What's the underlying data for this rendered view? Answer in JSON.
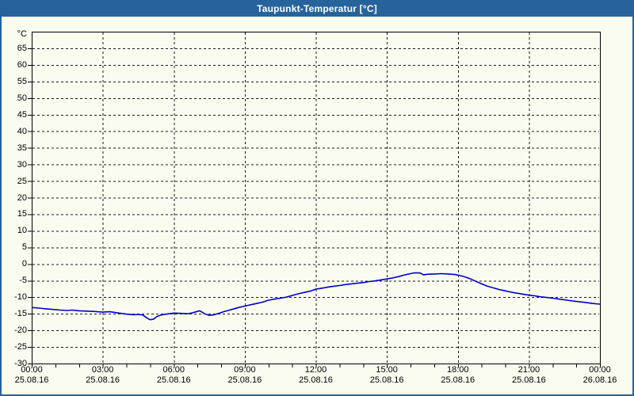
{
  "window": {
    "title": "Taupunkt-Temperatur [°C]"
  },
  "colors": {
    "titlebar_bg": "#26639b",
    "window_border": "#26639b",
    "background": "#fbfcf0",
    "curve": "#0000c8",
    "grid": "#1a1a1a",
    "frame": "#000000",
    "label_text": "#000000",
    "title_text": "#ffffff"
  },
  "chart_data": {
    "type": "line",
    "title": "Taupunkt-Temperatur [°C]",
    "y_unit_label": "°C",
    "xlabel": "",
    "ylabel": "°C",
    "ylim": [
      -30,
      70
    ],
    "y_tick_step": 5,
    "y_ticks": [
      65,
      60,
      55,
      50,
      45,
      40,
      35,
      30,
      25,
      20,
      15,
      10,
      5,
      0,
      -5,
      -10,
      -15,
      -20,
      -25,
      -30
    ],
    "xlim_hours": [
      0,
      24
    ],
    "x_minor_tick_every_hours": 1,
    "x_ticks": [
      {
        "hour": 0,
        "time": "00:00",
        "date": "25.08.16"
      },
      {
        "hour": 3,
        "time": "03:00",
        "date": "25.08.16"
      },
      {
        "hour": 6,
        "time": "06:00",
        "date": "25.08.16"
      },
      {
        "hour": 9,
        "time": "09:00",
        "date": "25.08.16"
      },
      {
        "hour": 12,
        "time": "12:00",
        "date": "25.08.16"
      },
      {
        "hour": 15,
        "time": "15:00",
        "date": "25.08.16"
      },
      {
        "hour": 18,
        "time": "18:00",
        "date": "25.08.16"
      },
      {
        "hour": 21,
        "time": "21:00",
        "date": "25.08.16"
      },
      {
        "hour": 24,
        "time": "00:00",
        "date": "26.08.16"
      }
    ],
    "grid": "dashed",
    "legend": "none",
    "series": [
      {
        "name": "Taupunkt-Temperatur",
        "color": "#0000c8",
        "points": [
          [
            0.0,
            -13.1
          ],
          [
            0.3,
            -13.3
          ],
          [
            0.6,
            -13.5
          ],
          [
            0.9,
            -13.7
          ],
          [
            1.2,
            -13.9
          ],
          [
            1.5,
            -14.0
          ],
          [
            1.7,
            -13.9
          ],
          [
            2.0,
            -14.1
          ],
          [
            2.3,
            -14.2
          ],
          [
            2.6,
            -14.3
          ],
          [
            3.0,
            -14.5
          ],
          [
            3.3,
            -14.4
          ],
          [
            3.6,
            -14.7
          ],
          [
            4.0,
            -15.1
          ],
          [
            4.3,
            -15.3
          ],
          [
            4.5,
            -15.2
          ],
          [
            4.7,
            -15.4
          ],
          [
            4.85,
            -16.2
          ],
          [
            5.0,
            -16.8
          ],
          [
            5.15,
            -16.6
          ],
          [
            5.3,
            -15.8
          ],
          [
            5.5,
            -15.3
          ],
          [
            5.7,
            -15.1
          ],
          [
            6.0,
            -14.8
          ],
          [
            6.3,
            -14.9
          ],
          [
            6.6,
            -15.0
          ],
          [
            6.8,
            -14.7
          ],
          [
            7.0,
            -14.3
          ],
          [
            7.1,
            -14.1
          ],
          [
            7.3,
            -15.0
          ],
          [
            7.5,
            -15.5
          ],
          [
            7.7,
            -15.3
          ],
          [
            7.9,
            -14.9
          ],
          [
            8.1,
            -14.4
          ],
          [
            8.3,
            -14.0
          ],
          [
            8.5,
            -13.6
          ],
          [
            8.75,
            -13.1
          ],
          [
            9.0,
            -12.7
          ],
          [
            9.25,
            -12.3
          ],
          [
            9.5,
            -11.9
          ],
          [
            9.75,
            -11.5
          ],
          [
            10.0,
            -10.9
          ],
          [
            10.25,
            -10.6
          ],
          [
            10.5,
            -10.3
          ],
          [
            10.75,
            -10.0
          ],
          [
            11.0,
            -9.5
          ],
          [
            11.25,
            -9.0
          ],
          [
            11.5,
            -8.6
          ],
          [
            11.75,
            -8.2
          ],
          [
            12.0,
            -7.6
          ],
          [
            12.25,
            -7.3
          ],
          [
            12.5,
            -7.0
          ],
          [
            12.75,
            -6.7
          ],
          [
            13.0,
            -6.5
          ],
          [
            13.25,
            -6.2
          ],
          [
            13.5,
            -6.0
          ],
          [
            13.75,
            -5.8
          ],
          [
            14.0,
            -5.6
          ],
          [
            14.25,
            -5.3
          ],
          [
            14.5,
            -5.1
          ],
          [
            14.75,
            -4.8
          ],
          [
            15.0,
            -4.5
          ],
          [
            15.25,
            -4.2
          ],
          [
            15.5,
            -3.8
          ],
          [
            15.75,
            -3.3
          ],
          [
            16.0,
            -2.9
          ],
          [
            16.15,
            -2.7
          ],
          [
            16.4,
            -2.7
          ],
          [
            16.55,
            -3.3
          ],
          [
            16.7,
            -3.1
          ],
          [
            17.0,
            -3.0
          ],
          [
            17.3,
            -2.9
          ],
          [
            17.6,
            -3.0
          ],
          [
            17.9,
            -3.2
          ],
          [
            18.1,
            -3.5
          ],
          [
            18.3,
            -3.9
          ],
          [
            18.5,
            -4.4
          ],
          [
            18.75,
            -5.2
          ],
          [
            19.0,
            -6.0
          ],
          [
            19.25,
            -6.7
          ],
          [
            19.5,
            -7.2
          ],
          [
            19.75,
            -7.7
          ],
          [
            20.0,
            -8.1
          ],
          [
            20.25,
            -8.5
          ],
          [
            20.5,
            -8.8
          ],
          [
            20.75,
            -9.1
          ],
          [
            21.0,
            -9.4
          ],
          [
            21.25,
            -9.6
          ],
          [
            21.5,
            -9.9
          ],
          [
            21.75,
            -10.1
          ],
          [
            22.0,
            -10.3
          ],
          [
            22.3,
            -10.6
          ],
          [
            22.6,
            -10.9
          ],
          [
            23.0,
            -11.3
          ],
          [
            23.4,
            -11.6
          ],
          [
            23.7,
            -11.9
          ],
          [
            24.0,
            -12.1
          ]
        ]
      }
    ]
  }
}
